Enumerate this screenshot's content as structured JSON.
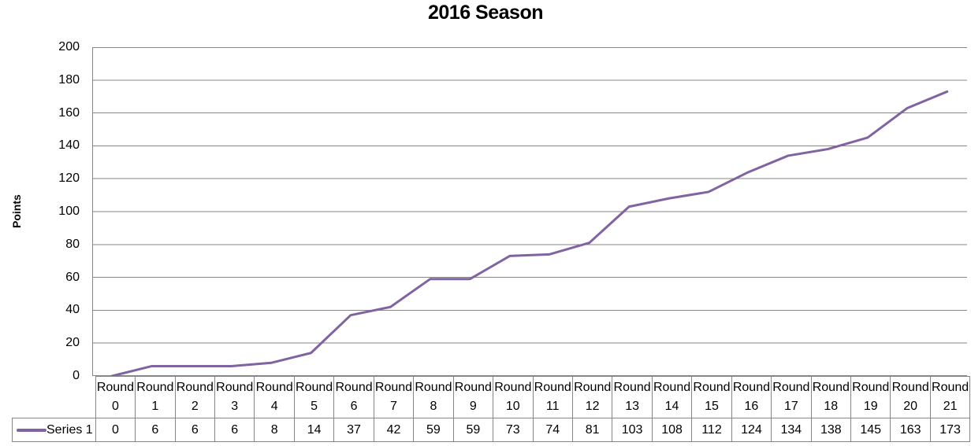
{
  "chart_data": {
    "type": "line",
    "title": "2016 Season",
    "ylabel": "Points",
    "xlabel": "",
    "categories": [
      "Round 0",
      "Round 1",
      "Round 2",
      "Round 3",
      "Round 4",
      "Round 5",
      "Round 6",
      "Round 7",
      "Round 8",
      "Round 9",
      "Round 10",
      "Round 11",
      "Round 12",
      "Round 13",
      "Round 14",
      "Round 15",
      "Round 16",
      "Round 17",
      "Round 18",
      "Round 19",
      "Round 20",
      "Round 21"
    ],
    "series": [
      {
        "name": "Series 1",
        "color": "#8064A2",
        "values": [
          0,
          6,
          6,
          6,
          8,
          14,
          37,
          42,
          59,
          59,
          73,
          74,
          81,
          103,
          108,
          112,
          124,
          134,
          138,
          145,
          163,
          173
        ]
      }
    ],
    "ylim": [
      0,
      200
    ],
    "y_ticks": [
      0,
      20,
      40,
      60,
      80,
      100,
      120,
      140,
      160,
      180,
      200
    ],
    "grid": true,
    "legend_position": "data-table-left",
    "data_table_shown": true
  },
  "colors": {
    "line": "#8064A2",
    "gridline": "#868686",
    "axis": "#868686",
    "table_border": "#868686",
    "text": "#000000",
    "background": "#FFFFFF"
  }
}
